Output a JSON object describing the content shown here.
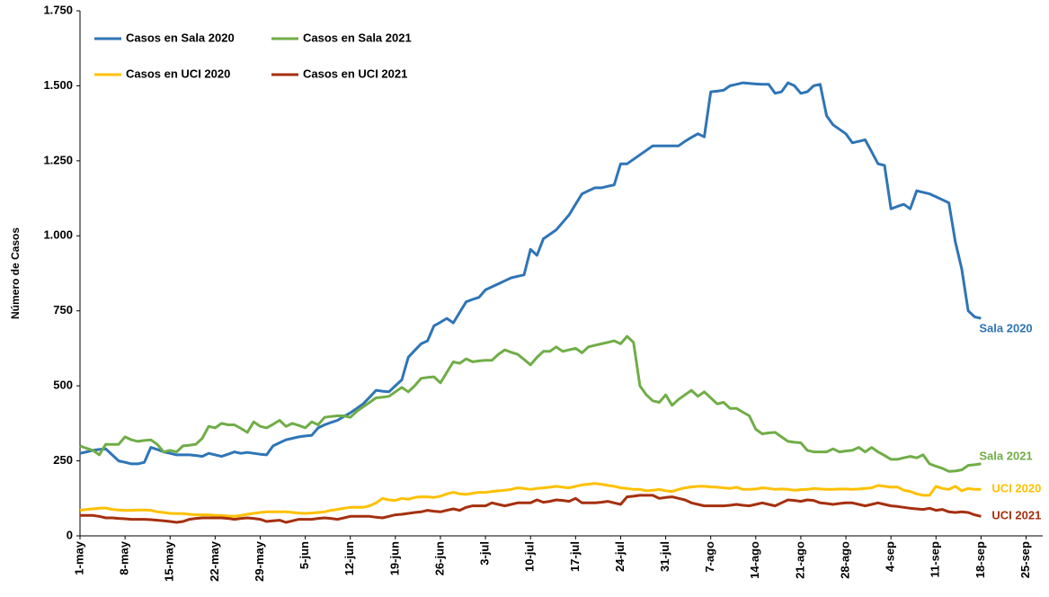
{
  "chart_data": {
    "type": "line",
    "y_label": "Número de Casos",
    "categories": [
      "1-may",
      null,
      null,
      null,
      null,
      null,
      null,
      "8-may",
      null,
      null,
      null,
      null,
      null,
      null,
      "15-may",
      null,
      null,
      null,
      null,
      null,
      null,
      "22-may",
      null,
      null,
      null,
      null,
      null,
      null,
      "29-may",
      null,
      null,
      null,
      null,
      null,
      null,
      "5-jun",
      null,
      null,
      null,
      null,
      null,
      null,
      "12-jun",
      null,
      null,
      null,
      null,
      null,
      null,
      "19-jun",
      null,
      null,
      null,
      null,
      null,
      null,
      "26-jun",
      null,
      null,
      null,
      null,
      null,
      null,
      "3-jul",
      null,
      null,
      null,
      null,
      null,
      null,
      "10-jul",
      null,
      null,
      null,
      null,
      null,
      null,
      "17-jul",
      null,
      null,
      null,
      null,
      null,
      null,
      "24-jul",
      null,
      null,
      null,
      null,
      null,
      null,
      "31-jul",
      null,
      null,
      null,
      null,
      null,
      null,
      "7-ago",
      null,
      null,
      null,
      null,
      null,
      null,
      "14-ago",
      null,
      null,
      null,
      null,
      null,
      null,
      "21-ago",
      null,
      null,
      null,
      null,
      null,
      null,
      "28-ago",
      null,
      null,
      null,
      null,
      null,
      null,
      "4-sep",
      null,
      null,
      null,
      null,
      null,
      null,
      "11-sep",
      null,
      null,
      null,
      null,
      null,
      null,
      "18-sep",
      null,
      null,
      null,
      null,
      null,
      null,
      "25-sep"
    ],
    "ylim": [
      0,
      1750
    ],
    "yticks": [
      0,
      250,
      500,
      750,
      {
        "value": 1000,
        "label": "1.000"
      },
      {
        "value": 1250,
        "label": "1.250"
      },
      {
        "value": 1500,
        "label": "1.500"
      },
      {
        "value": 1750,
        "label": "1.750"
      }
    ],
    "grid": false,
    "legend": "top-left",
    "series": [
      {
        "name": "Casos en Sala 2020",
        "label": "Sala 2020",
        "color": "#2e75b6",
        "values": [
          275,
          280,
          285,
          288,
          290,
          270,
          250,
          245,
          240,
          240,
          245,
          295,
          288,
          280,
          275,
          270,
          270,
          270,
          268,
          265,
          275,
          270,
          265,
          272,
          280,
          275,
          278,
          275,
          272,
          270,
          300,
          310,
          320,
          325,
          330,
          333,
          335,
          360,
          370,
          378,
          385,
          398,
          410,
          425,
          440,
          462,
          485,
          482,
          480,
          500,
          520,
          595,
          618,
          640,
          650,
          700,
          712,
          725,
          710,
          745,
          780,
          788,
          795,
          820,
          830,
          840,
          850,
          860,
          865,
          870,
          955,
          935,
          990,
          1005,
          1020,
          1045,
          1070,
          1105,
          1140,
          1150,
          1160,
          1160,
          1165,
          1170,
          1240,
          1240,
          1255,
          1270,
          1285,
          1300,
          1300,
          1300,
          1300,
          1300,
          1315,
          1328,
          1340,
          1330,
          1480,
          1482,
          1485,
          1500,
          1505,
          1510,
          1508,
          1506,
          1505,
          1505,
          1475,
          1480,
          1510,
          1500,
          1475,
          1480,
          1500,
          1505,
          1400,
          1370,
          1355,
          1340,
          1310,
          1315,
          1320,
          1280,
          1240,
          1235,
          1090,
          1098,
          1105,
          1090,
          1150,
          1145,
          1140,
          1130,
          1120,
          1110,
          980,
          890,
          750,
          730,
          725,
          null,
          null,
          null,
          null,
          null,
          null,
          null
        ]
      },
      {
        "name": "Casos en Sala 2021",
        "label": "Sala 2021",
        "color": "#70ad47",
        "values": [
          300,
          292,
          285,
          270,
          305,
          305,
          305,
          330,
          320,
          315,
          318,
          320,
          305,
          280,
          285,
          280,
          300,
          302,
          305,
          325,
          365,
          360,
          375,
          370,
          370,
          358,
          345,
          380,
          365,
          360,
          372,
          385,
          365,
          375,
          368,
          360,
          380,
          370,
          395,
          398,
          400,
          400,
          395,
          415,
          430,
          445,
          460,
          462,
          465,
          480,
          495,
          480,
          500,
          525,
          528,
          530,
          510,
          545,
          580,
          575,
          590,
          580,
          583,
          585,
          585,
          605,
          620,
          612,
          605,
          588,
          570,
          595,
          615,
          615,
          630,
          615,
          620,
          625,
          610,
          630,
          635,
          640,
          645,
          650,
          640,
          665,
          645,
          500,
          470,
          450,
          445,
          470,
          435,
          455,
          470,
          485,
          465,
          480,
          460,
          440,
          445,
          425,
          425,
          412,
          400,
          355,
          340,
          343,
          345,
          330,
          315,
          312,
          310,
          285,
          280,
          280,
          280,
          290,
          280,
          283,
          285,
          295,
          280,
          295,
          280,
          268,
          255,
          255,
          260,
          265,
          260,
          270,
          240,
          232,
          225,
          215,
          216,
          220,
          235,
          237,
          240,
          null,
          null,
          null,
          null,
          null,
          null,
          null
        ]
      },
      {
        "name": "Casos en UCI 2020",
        "label": "UCI 2020",
        "color": "#ffc000",
        "values": [
          85,
          88,
          90,
          92,
          93,
          88,
          86,
          85,
          85,
          86,
          86,
          85,
          80,
          78,
          75,
          74,
          74,
          72,
          70,
          70,
          70,
          68,
          68,
          66,
          65,
          68,
          72,
          75,
          78,
          80,
          80,
          80,
          80,
          78,
          76,
          75,
          76,
          78,
          80,
          85,
          88,
          92,
          95,
          95,
          95,
          100,
          110,
          125,
          120,
          118,
          125,
          122,
          128,
          130,
          130,
          128,
          132,
          140,
          145,
          140,
          138,
          142,
          145,
          145,
          148,
          150,
          152,
          155,
          160,
          158,
          155,
          158,
          160,
          162,
          165,
          162,
          160,
          165,
          170,
          172,
          175,
          172,
          168,
          165,
          160,
          158,
          155,
          155,
          150,
          152,
          155,
          150,
          148,
          155,
          160,
          163,
          165,
          165,
          163,
          162,
          160,
          158,
          162,
          155,
          155,
          156,
          160,
          158,
          155,
          156,
          155,
          152,
          154,
          155,
          158,
          156,
          155,
          155,
          156,
          156,
          155,
          156,
          158,
          160,
          168,
          165,
          162,
          163,
          152,
          148,
          140,
          135,
          135,
          165,
          158,
          155,
          165,
          150,
          158,
          155,
          155,
          null,
          null,
          null,
          null,
          null,
          null,
          null
        ]
      },
      {
        "name": "Casos en UCI 2021",
        "label": "UCI 2021",
        "color": "#a5300f",
        "values": [
          68,
          68,
          68,
          65,
          60,
          60,
          58,
          57,
          55,
          55,
          55,
          54,
          52,
          50,
          48,
          45,
          48,
          55,
          58,
          60,
          60,
          60,
          60,
          58,
          55,
          58,
          60,
          58,
          55,
          48,
          50,
          52,
          45,
          50,
          55,
          55,
          55,
          58,
          60,
          58,
          55,
          60,
          65,
          65,
          65,
          65,
          62,
          60,
          65,
          70,
          72,
          75,
          78,
          80,
          85,
          82,
          80,
          85,
          90,
          85,
          95,
          100,
          100,
          100,
          110,
          105,
          100,
          105,
          110,
          110,
          110,
          120,
          112,
          115,
          120,
          118,
          115,
          125,
          110,
          110,
          110,
          112,
          115,
          110,
          105,
          130,
          132,
          135,
          135,
          135,
          125,
          128,
          130,
          125,
          120,
          110,
          105,
          100,
          100,
          100,
          100,
          102,
          105,
          102,
          100,
          105,
          110,
          105,
          100,
          110,
          120,
          118,
          115,
          120,
          118,
          110,
          108,
          105,
          108,
          110,
          110,
          105,
          100,
          105,
          110,
          105,
          100,
          98,
          95,
          92,
          90,
          88,
          92,
          85,
          88,
          80,
          78,
          80,
          78,
          70,
          65,
          null,
          null,
          null,
          null,
          null,
          null,
          null
        ]
      }
    ]
  }
}
